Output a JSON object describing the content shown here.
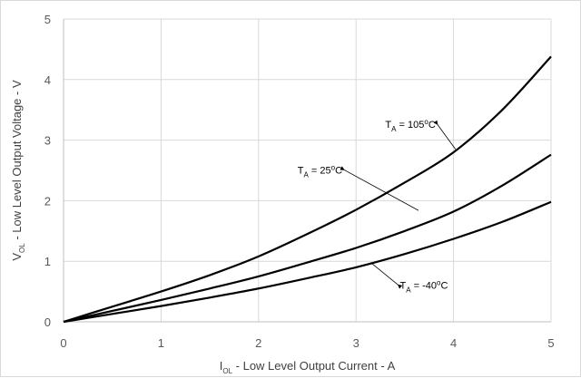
{
  "chart_data": {
    "type": "line",
    "title": "",
    "xlabel": {
      "main": "I",
      "sub": "OL",
      "rest": " - Low Level Output Current - A"
    },
    "ylabel": {
      "main": "V",
      "sub": "OL",
      "rest": " - Low Level Output Voltage - V"
    },
    "xlim": [
      0,
      5
    ],
    "ylim": [
      0,
      5
    ],
    "x_ticks": [
      "0",
      "1",
      "2",
      "3",
      "4",
      "5"
    ],
    "y_ticks": [
      "0",
      "1",
      "2",
      "3",
      "4",
      "5"
    ],
    "grid": true,
    "x": [
      0,
      0.5,
      1,
      1.5,
      2,
      2.5,
      3,
      3.5,
      4,
      4.5,
      5
    ],
    "series": [
      {
        "annotation": {
          "main": "T",
          "sub": "A",
          "value": " = 105",
          "sup": "o",
          "unit": "C"
        },
        "values": [
          0,
          0.25,
          0.5,
          0.77,
          1.08,
          1.45,
          1.85,
          2.3,
          2.8,
          3.5,
          4.38
        ],
        "color": "#000000"
      },
      {
        "annotation": {
          "main": "T",
          "sub": "A",
          "value": " = 25",
          "sup": "o",
          "unit": "C"
        },
        "values": [
          0,
          0.18,
          0.36,
          0.55,
          0.75,
          0.98,
          1.22,
          1.5,
          1.82,
          2.25,
          2.76
        ],
        "color": "#000000"
      },
      {
        "annotation": {
          "main": "T",
          "sub": "A",
          "value": " = -40",
          "sup": "o",
          "unit": "C"
        },
        "values": [
          0,
          0.13,
          0.26,
          0.4,
          0.55,
          0.72,
          0.9,
          1.12,
          1.37,
          1.65,
          1.98
        ],
        "color": "#000000"
      }
    ],
    "annotation_arrows": [
      {
        "label_at": [
          3.3,
          3.2
        ],
        "arrow_to": [
          4.02,
          2.85
        ]
      },
      {
        "label_at": [
          2.4,
          2.45
        ],
        "arrow_to": [
          3.64,
          1.84
        ]
      },
      {
        "label_at": [
          3.45,
          0.55
        ],
        "arrow_to": [
          3.15,
          0.98
        ]
      }
    ]
  }
}
